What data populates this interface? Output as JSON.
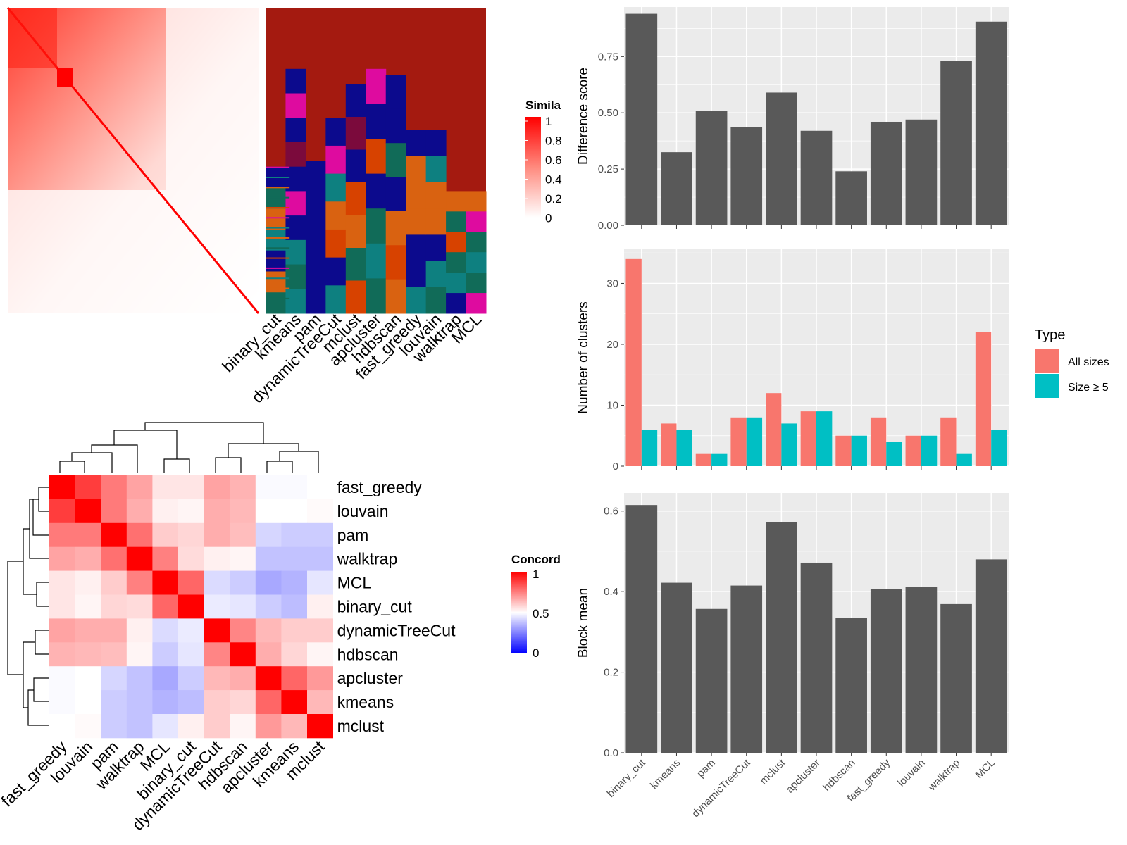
{
  "colors": {
    "panel_bg": "#ebebeb",
    "grid": "#ffffff",
    "bar": "#595959",
    "all_sizes": "#f8766d",
    "size_ge5": "#00bfc4",
    "heat_hi": "#ff0000",
    "heat_mid": "#ffffff",
    "heat_lo": "#0000ff",
    "cluster_palette": [
      "#a41a10",
      "#0c0a8d",
      "#de0b9f",
      "#0e8080",
      "#d96211",
      "#116b58",
      "#d74200",
      "#0a7a2e",
      "#7b0a3c",
      "#dadada"
    ]
  },
  "similarity_heatmap": {
    "legend_title": "Simila",
    "legend_ticks": [
      "1",
      "0.8",
      "0.6",
      "0.4",
      "0.2",
      "0"
    ],
    "methods": [
      "binary_cut",
      "kmeans",
      "pam",
      "dynamicTreeCut",
      "mclust",
      "apcluster",
      "hdbscan",
      "fast_greedy",
      "louvain",
      "walktrap",
      "MCL"
    ]
  },
  "concordance_heatmap": {
    "legend_title": "Concord",
    "legend_ticks": [
      "1",
      "0.5",
      "0"
    ],
    "row_labels": [
      "fast_greedy",
      "louvain",
      "pam",
      "walktrap",
      "MCL",
      "binary_cut",
      "dynamicTreeCut",
      "hdbscan",
      "apcluster",
      "kmeans",
      "mclust"
    ],
    "col_labels": [
      "fast_greedy",
      "louvain",
      "pam",
      "walktrap",
      "MCL",
      "binary_cut",
      "dynamicTreeCut",
      "hdbscan",
      "apcluster",
      "kmeans",
      "mclust"
    ]
  },
  "legend": {
    "title": "Type",
    "items": [
      "All sizes",
      "Size ≥ 5"
    ]
  },
  "chart_data": [
    {
      "type": "bar",
      "ylabel": "Difference score",
      "xlabel": "",
      "ylim": [
        0,
        0.97
      ],
      "yticks": [
        0.0,
        0.25,
        0.5,
        0.75
      ],
      "ytick_labels": [
        "0.00",
        "0.25",
        "0.50",
        "0.75"
      ],
      "categories": [
        "binary_cut",
        "kmeans",
        "pam",
        "dynamicTreeCut",
        "mclust",
        "apcluster",
        "hdbscan",
        "fast_greedy",
        "louvain",
        "walktrap",
        "MCL"
      ],
      "values": [
        0.94,
        0.325,
        0.51,
        0.435,
        0.59,
        0.42,
        0.24,
        0.46,
        0.47,
        0.73,
        0.905
      ]
    },
    {
      "type": "bar",
      "ylabel": "Number of clusters",
      "xlabel": "",
      "ylim": [
        0,
        35.6
      ],
      "yticks": [
        0,
        10,
        20,
        30
      ],
      "ytick_labels": [
        "0",
        "10",
        "20",
        "30"
      ],
      "categories": [
        "binary_cut",
        "kmeans",
        "pam",
        "dynamicTreeCut",
        "mclust",
        "apcluster",
        "hdbscan",
        "fast_greedy",
        "louvain",
        "walktrap",
        "MCL"
      ],
      "series": [
        {
          "name": "All sizes",
          "values": [
            34,
            7,
            2,
            8,
            12,
            9,
            5,
            8,
            5,
            8,
            22
          ]
        },
        {
          "name": "Size ≥ 5",
          "values": [
            6,
            6,
            2,
            8,
            7,
            9,
            5,
            4,
            5,
            2,
            6
          ]
        }
      ]
    },
    {
      "type": "bar",
      "ylabel": "Block mean",
      "xlabel": "",
      "ylim": [
        0,
        0.645
      ],
      "yticks": [
        0.0,
        0.2,
        0.4,
        0.6
      ],
      "ytick_labels": [
        "0.0",
        "0.2",
        "0.4",
        "0.6"
      ],
      "categories": [
        "binary_cut",
        "kmeans",
        "pam",
        "dynamicTreeCut",
        "mclust",
        "apcluster",
        "hdbscan",
        "fast_greedy",
        "louvain",
        "walktrap",
        "MCL"
      ],
      "values": [
        0.615,
        0.422,
        0.357,
        0.415,
        0.572,
        0.472,
        0.334,
        0.407,
        0.412,
        0.369,
        0.48
      ]
    },
    {
      "type": "heatmap",
      "name": "concordance",
      "rows": [
        "fast_greedy",
        "louvain",
        "pam",
        "walktrap",
        "MCL",
        "binary_cut",
        "dynamicTreeCut",
        "hdbscan",
        "apcluster",
        "kmeans",
        "mclust"
      ],
      "cols": [
        "fast_greedy",
        "louvain",
        "pam",
        "walktrap",
        "MCL",
        "binary_cut",
        "dynamicTreeCut",
        "hdbscan",
        "apcluster",
        "kmeans",
        "mclust"
      ],
      "values": [
        [
          1.0,
          0.88,
          0.76,
          0.68,
          0.55,
          0.55,
          0.68,
          0.65,
          0.49,
          0.49,
          0.5
        ],
        [
          0.88,
          1.0,
          0.76,
          0.66,
          0.53,
          0.52,
          0.66,
          0.64,
          0.5,
          0.5,
          0.51
        ],
        [
          0.76,
          0.76,
          1.0,
          0.78,
          0.6,
          0.58,
          0.66,
          0.63,
          0.42,
          0.4,
          0.4
        ],
        [
          0.68,
          0.66,
          0.78,
          1.0,
          0.75,
          0.57,
          0.53,
          0.52,
          0.38,
          0.38,
          0.38
        ],
        [
          0.55,
          0.53,
          0.6,
          0.75,
          1.0,
          0.8,
          0.43,
          0.4,
          0.33,
          0.35,
          0.45
        ],
        [
          0.55,
          0.52,
          0.58,
          0.57,
          0.8,
          1.0,
          0.46,
          0.45,
          0.4,
          0.37,
          0.53
        ],
        [
          0.68,
          0.66,
          0.66,
          0.53,
          0.43,
          0.46,
          1.0,
          0.74,
          0.64,
          0.6,
          0.6
        ],
        [
          0.65,
          0.64,
          0.63,
          0.52,
          0.4,
          0.45,
          0.74,
          1.0,
          0.66,
          0.58,
          0.52
        ],
        [
          0.49,
          0.5,
          0.42,
          0.38,
          0.33,
          0.4,
          0.64,
          0.66,
          1.0,
          0.8,
          0.7
        ],
        [
          0.49,
          0.5,
          0.4,
          0.38,
          0.35,
          0.37,
          0.6,
          0.58,
          0.8,
          1.0,
          0.64
        ],
        [
          0.5,
          0.51,
          0.4,
          0.38,
          0.45,
          0.53,
          0.6,
          0.52,
          0.7,
          0.64,
          1.0
        ]
      ]
    }
  ]
}
